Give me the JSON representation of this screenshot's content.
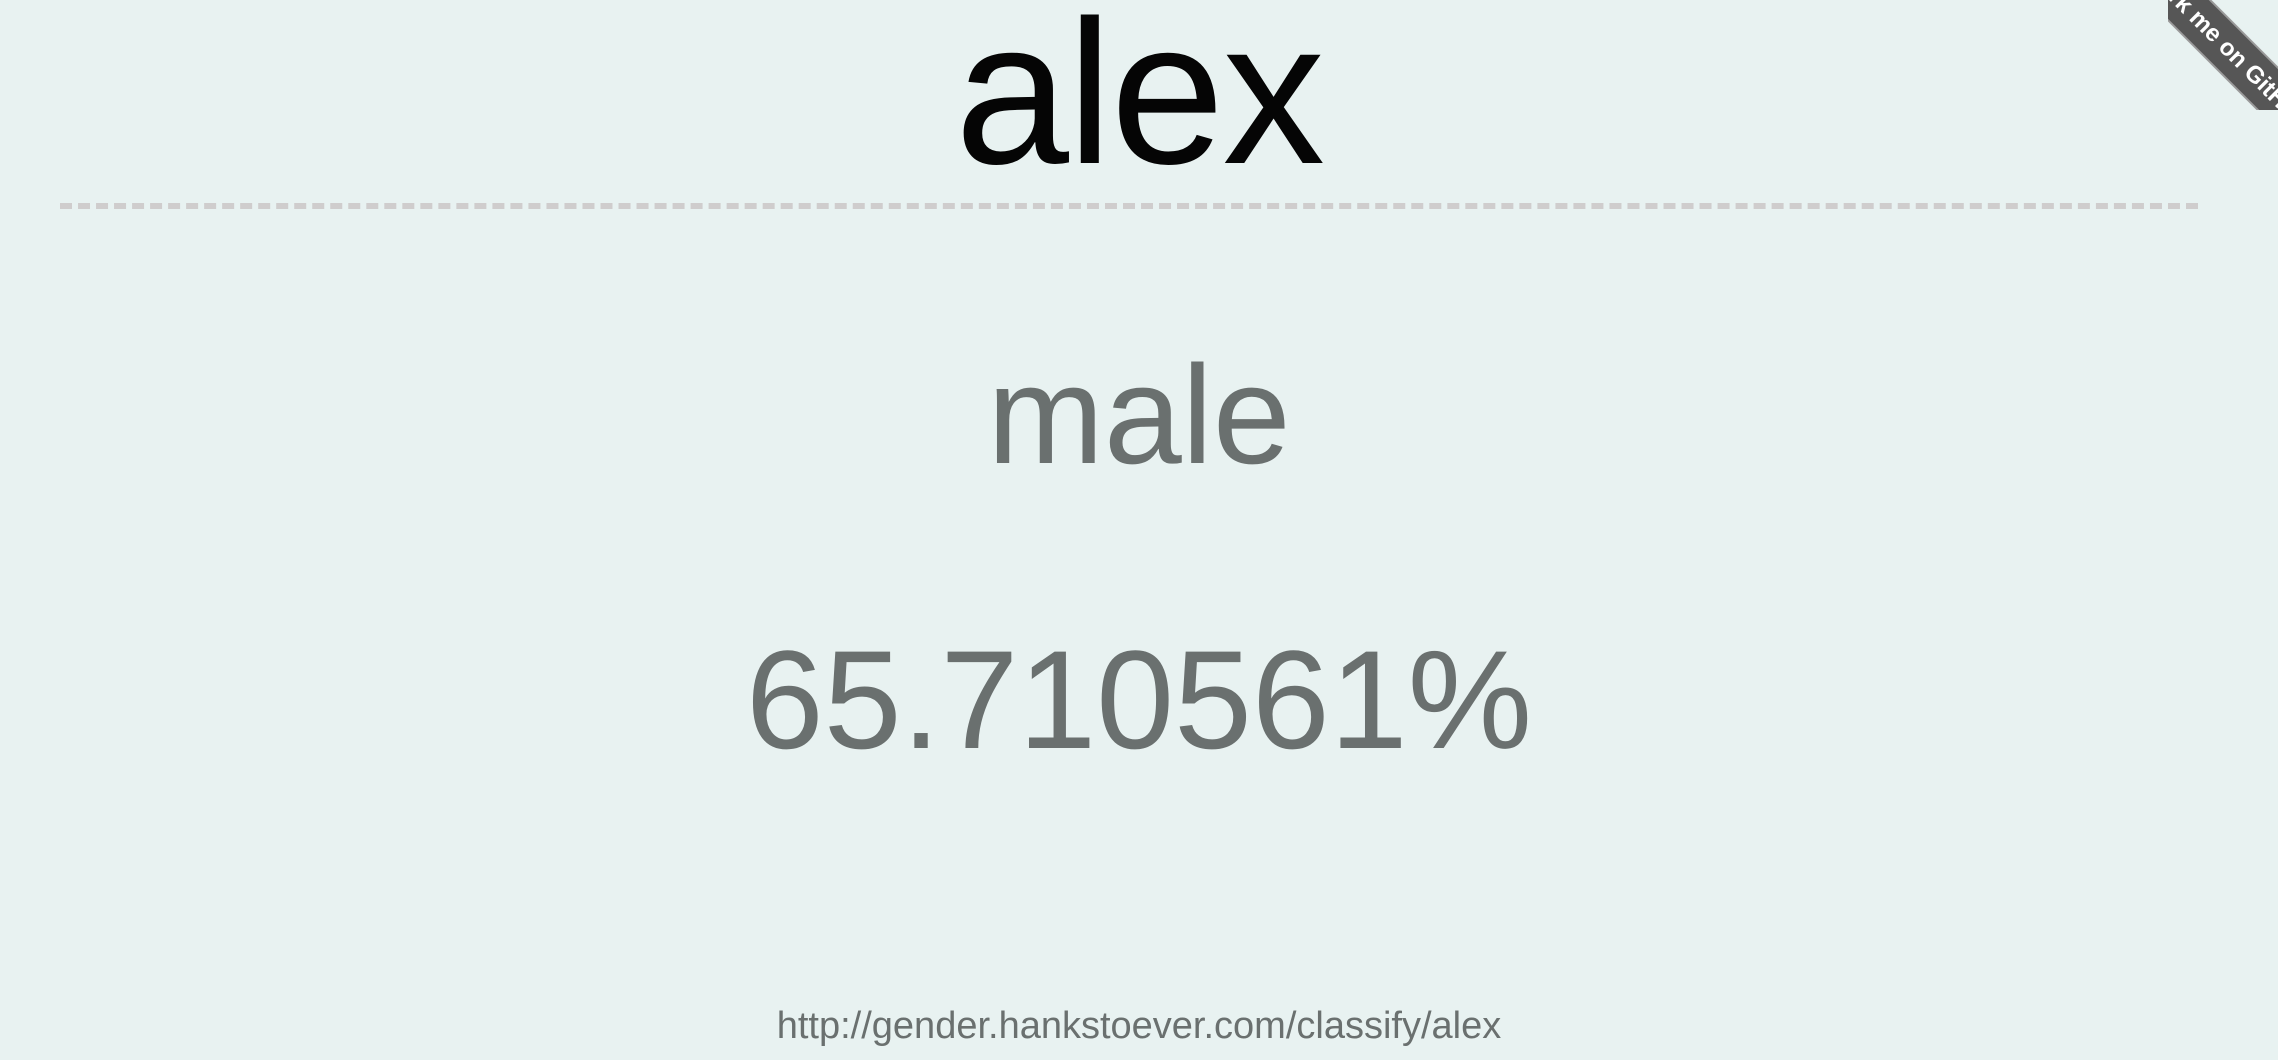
{
  "name": "alex",
  "result": {
    "gender": "male",
    "probability": "65.710561%"
  },
  "footer": {
    "url": "http://gender.hankstoever.com/classify/alex"
  },
  "ribbon": {
    "label": "Fork me on GitHub"
  },
  "colors": {
    "background": "#e8f2f1",
    "heading": "#050505",
    "text": "#6a706f",
    "divider": "#cfcdcd",
    "ribbon": "#565656"
  }
}
